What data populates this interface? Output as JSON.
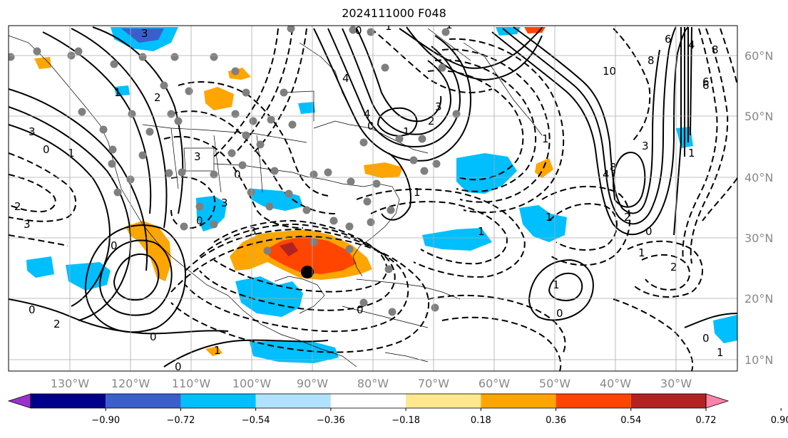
{
  "title": "2024111000 F048",
  "latitude_labels": [
    "60°N",
    "50°N",
    "40°N",
    "30°N",
    "20°N",
    "10°N"
  ],
  "longitude_labels": [
    "130°W",
    "120°W",
    "110°W",
    "100°W",
    "90°W",
    "80°W",
    "70°W",
    "60°W",
    "50°W",
    "40°W",
    "30°W"
  ],
  "colorbar": {
    "ticks": [
      "−0.90",
      "−0.72",
      "−0.54",
      "−0.36",
      "−0.18",
      "0.18",
      "0.36",
      "0.54",
      "0.72",
      "0.90"
    ],
    "colors": [
      "#9a32cd",
      "#00008b",
      "#3a5fcd",
      "#00bfff",
      "#b0e2ff",
      "#ffffff",
      "#ffe88c",
      "#ffa500",
      "#ff4500",
      "#b22222",
      "#ff82ab"
    ]
  },
  "contour_labels": [
    "3",
    "1",
    "2",
    "3",
    "4",
    "3",
    "2",
    "1",
    "0",
    "3",
    "10",
    "6",
    "8",
    "8",
    "6",
    "4",
    "2",
    "3",
    "4",
    "8",
    "3",
    "2",
    "3",
    "1",
    "0",
    "0",
    "0",
    "2",
    "0",
    "0",
    "1",
    "3",
    "1",
    "0",
    "4",
    "0",
    "1",
    "1",
    "1",
    "2",
    "1",
    "0",
    "1",
    "0",
    "0",
    "1",
    "1",
    "0",
    "0",
    "1",
    "1",
    "6"
  ],
  "hurricane_center": {
    "lon_label": "~90°W",
    "lat_label": "~24°N"
  }
}
